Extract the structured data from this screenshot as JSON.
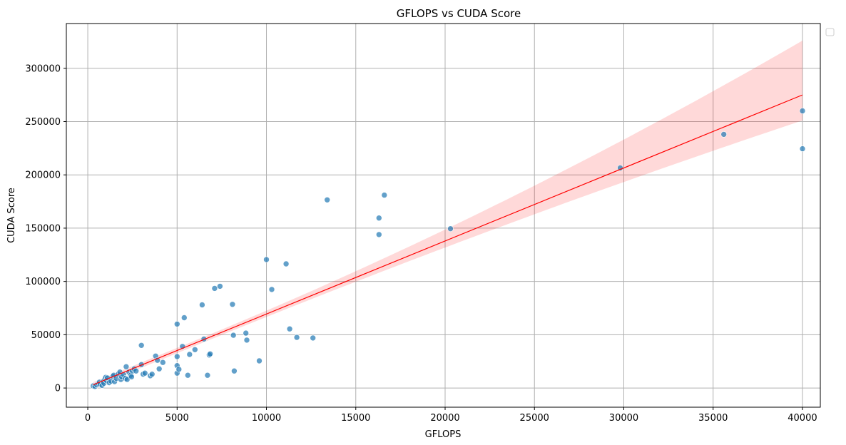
{
  "chart_data": {
    "type": "scatter",
    "title": "GFLOPS vs CUDA Score",
    "xlabel": "GFLOPS",
    "ylabel": "CUDA Score",
    "xlim": [
      -1200,
      41000
    ],
    "ylim": [
      -18000,
      342000
    ],
    "grid": true,
    "legend": "top-right (empty)",
    "x_ticks": [
      0,
      5000,
      10000,
      15000,
      20000,
      25000,
      30000,
      35000,
      40000
    ],
    "y_ticks": [
      0,
      50000,
      100000,
      150000,
      200000,
      250000,
      300000
    ],
    "point_color": "#1f77b4",
    "fit_color": "#ff0000",
    "regression": {
      "x_start": 300,
      "y_start": 3000,
      "x_end": 40000,
      "y_end": 275000,
      "ci_lower_at_end": 251000,
      "ci_upper_at_end": 326000,
      "ci_half_width_at_start": 1500
    },
    "points": [
      [
        300,
        2000
      ],
      [
        400,
        1500
      ],
      [
        500,
        3000
      ],
      [
        600,
        4000
      ],
      [
        650,
        5500
      ],
      [
        700,
        3500
      ],
      [
        800,
        2500
      ],
      [
        850,
        6000
      ],
      [
        900,
        4500
      ],
      [
        950,
        8000
      ],
      [
        1000,
        10000
      ],
      [
        1050,
        7000
      ],
      [
        1100,
        9500
      ],
      [
        1200,
        5000
      ],
      [
        1300,
        6500
      ],
      [
        1400,
        11000
      ],
      [
        1450,
        12000
      ],
      [
        1500,
        6000
      ],
      [
        1600,
        9000
      ],
      [
        1700,
        13000
      ],
      [
        1800,
        15000
      ],
      [
        1850,
        8000
      ],
      [
        1900,
        10500
      ],
      [
        2000,
        12500
      ],
      [
        2100,
        9000
      ],
      [
        2150,
        20000
      ],
      [
        2200,
        8000
      ],
      [
        2300,
        15000
      ],
      [
        2400,
        12000
      ],
      [
        2450,
        10500
      ],
      [
        2500,
        16000
      ],
      [
        2600,
        18000
      ],
      [
        2700,
        16000
      ],
      [
        3000,
        22000
      ],
      [
        3000,
        40000
      ],
      [
        3100,
        13000
      ],
      [
        3200,
        14000
      ],
      [
        3500,
        11500
      ],
      [
        3600,
        13000
      ],
      [
        3800,
        30000
      ],
      [
        3900,
        26000
      ],
      [
        4000,
        18000
      ],
      [
        4200,
        24000
      ],
      [
        5000,
        29500
      ],
      [
        5000,
        21000
      ],
      [
        5000,
        14000
      ],
      [
        5000,
        60000
      ],
      [
        5100,
        17500
      ],
      [
        5300,
        39000
      ],
      [
        5400,
        66000
      ],
      [
        5600,
        12000
      ],
      [
        5700,
        31500
      ],
      [
        6000,
        36000
      ],
      [
        6400,
        78000
      ],
      [
        6500,
        46000
      ],
      [
        6700,
        12000
      ],
      [
        6800,
        31000
      ],
      [
        6850,
        32000
      ],
      [
        7100,
        93500
      ],
      [
        7400,
        95500
      ],
      [
        8100,
        78500
      ],
      [
        8150,
        49500
      ],
      [
        8200,
        16000
      ],
      [
        8850,
        51500
      ],
      [
        8900,
        45000
      ],
      [
        9600,
        25500
      ],
      [
        10000,
        120500
      ],
      [
        10300,
        92500
      ],
      [
        11100,
        116500
      ],
      [
        11300,
        55500
      ],
      [
        11700,
        47500
      ],
      [
        12600,
        47000
      ],
      [
        13400,
        176500
      ],
      [
        16300,
        159500
      ],
      [
        16300,
        144000
      ],
      [
        16600,
        181000
      ],
      [
        20300,
        149500
      ],
      [
        29800,
        206500
      ],
      [
        35600,
        238000
      ],
      [
        40000,
        260000
      ],
      [
        40000,
        224500
      ]
    ]
  }
}
